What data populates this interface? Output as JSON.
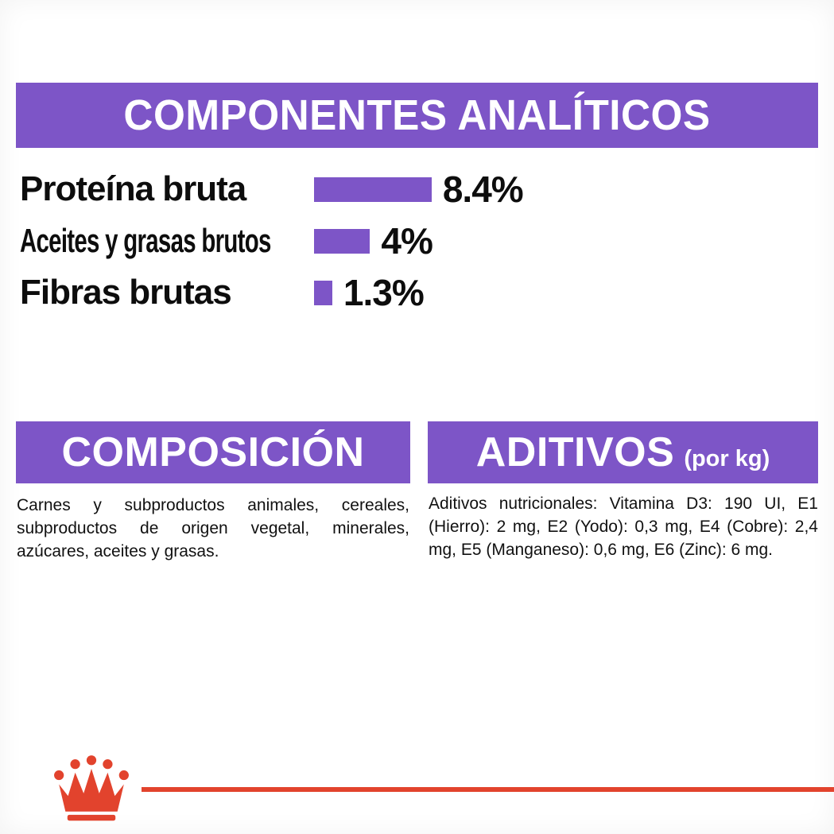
{
  "colors": {
    "purple": "#7d55c7",
    "red": "#e2432d",
    "text": "#111111",
    "background": "#ffffff"
  },
  "analytical": {
    "title": "COMPONENTES ANALÍTICOS"
  },
  "chart_data": {
    "type": "bar",
    "orientation": "horizontal",
    "title": "COMPONENTES ANALÍTICOS",
    "categories": [
      "Proteína bruta",
      "Aceites y grasas brutos",
      "Fibras brutas"
    ],
    "values": [
      8.4,
      4,
      1.3
    ],
    "value_labels": [
      "8.4%",
      "4%",
      "1.3%"
    ],
    "unit": "%",
    "xlim": [
      0,
      10
    ],
    "bar_color": "#7d55c7",
    "grid": false,
    "legend": false
  },
  "composition": {
    "title": "COMPOSICIÓN",
    "body": "Carnes y subproductos animales, cereales, subproductos de origen vegetal, minerales, azúcares, aceites y grasas."
  },
  "additives": {
    "title": "ADITIVOS",
    "subtitle": "(por kg)",
    "body": "Aditivos nutricionales: Vitamina D3: 190 UI, E1 (Hierro): 2 mg, E2 (Yodo): 0,3 mg, E4 (Cobre): 2,4 mg, E5 (Manganeso): 0,6 mg, E6 (Zinc): 6 mg."
  },
  "footer": {
    "logo": "royal-canin-crown"
  }
}
